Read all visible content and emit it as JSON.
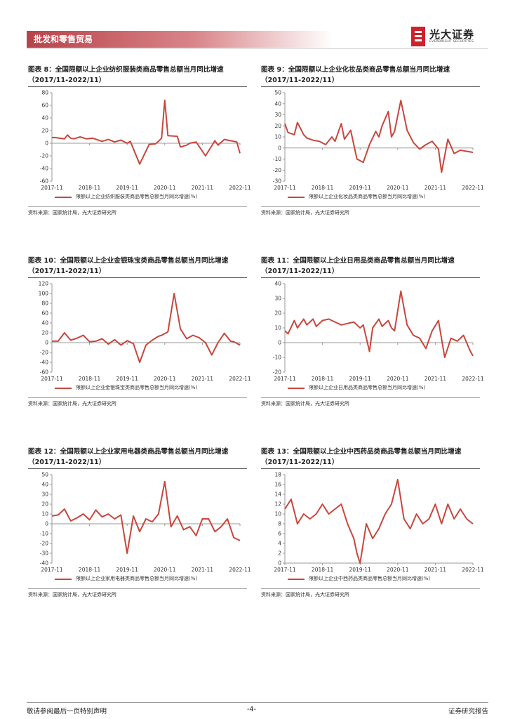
{
  "header": {
    "section": "批发和零售贸易",
    "brand_name": "光大证券",
    "brand_sub": "EVERBRIGHT SECURITIES"
  },
  "colors": {
    "series": "#c8463c",
    "header": "#b8434a",
    "axis": "#999999"
  },
  "charts": [
    {
      "title": "图表 8：全国限额以上企业纺织服装类商品零售总额当月同比增速（2017/11-2022/11）",
      "legend": "限额以上企业纺织服装类商品零售总额当月同比增速(%)",
      "source": "资料来源：国家统计局，光大证券研究所"
    },
    {
      "title": "图表 9：全国限额以上企业化妆品类商品零售总额当月同比增速（2017/11-2022/11）",
      "legend": "限额以上企业化妆品类商品零售总额当月同比增速(%)",
      "source": "资料来源：国家统计局，光大证券研究所"
    },
    {
      "title": "图表 10：全国限额以上企业金银珠宝类商品零售总额当月同比增速（2017/11-2022/11）",
      "legend": "限额以上企业金银珠宝类商品零售总额当月同比增速(%)",
      "source": "资料来源：国家统计局，光大证券研究所"
    },
    {
      "title": "图表 11：全国限额以上企业日用品类商品零售总额当月同比增速（2017/11-2022/11）",
      "legend": "限额以上企业日用品类商品零售总额当月同比增速(%)",
      "source": "资料来源：国家统计局，光大证券研究所"
    },
    {
      "title": "图表 12：全国限额以上企业家用电器类商品零售总额当月同比增速（2017/11-2022/11）",
      "legend": "限额以上企业家用电器类商品零售总额当月同比增速(%)",
      "source": "资料来源：国家统计局，光大证券研究所"
    },
    {
      "title": "图表 13：全国限额以上企业中西药品类商品零售总额当月同比增速（2017/11-2022/11）",
      "legend": "限额以上企业中西药品类商品零售总额当月同比增速(%)",
      "source": "资料来源：国家统计局，光大证券研究所"
    }
  ],
  "chart_data": [
    {
      "type": "line",
      "x_ticks": [
        "2017-11",
        "2018-11",
        "2019-11",
        "2020-11",
        "2021-11",
        "2022-11"
      ],
      "ylim": [
        -60,
        80
      ],
      "y_ticks": [
        -60,
        -40,
        -20,
        0,
        20,
        40,
        60,
        80
      ],
      "series": [
        {
          "name": "限额以上企业纺织服装类商品零售总额当月同比增速(%)",
          "x": [
            "2017-11",
            "2017-12",
            "2018-03",
            "2018-04",
            "2018-05",
            "2018-06",
            "2018-08",
            "2018-10",
            "2018-12",
            "2019-03",
            "2019-05",
            "2019-07",
            "2019-09",
            "2019-11",
            "2019-12",
            "2020-03",
            "2020-06",
            "2020-08",
            "2020-09",
            "2020-10",
            "2020-11",
            "2020-12",
            "2021-03",
            "2021-04",
            "2021-06",
            "2021-07",
            "2021-09",
            "2021-12",
            "2022-03",
            "2022-04",
            "2022-06",
            "2022-08",
            "2022-10",
            "2022-11"
          ],
          "values": [
            9,
            9,
            7,
            13,
            8,
            7,
            10,
            7,
            8,
            3,
            6,
            2,
            5,
            0,
            3,
            -33,
            -2,
            -1,
            3,
            8,
            68,
            12,
            11,
            -6,
            -3,
            0,
            2,
            -20,
            4,
            -3,
            6,
            4,
            2,
            -16
          ]
        }
      ]
    },
    {
      "type": "line",
      "x_ticks": [
        "2017-11",
        "2018-11",
        "2019-11",
        "2020-11",
        "2021-11",
        "2022-11"
      ],
      "ylim": [
        -30,
        50
      ],
      "y_ticks": [
        -30,
        -20,
        -10,
        0,
        10,
        20,
        30,
        40,
        50
      ],
      "series": [
        {
          "name": "限额以上企业化妆品类商品零售总额当月同比增速(%)",
          "x": [
            "2017-11",
            "2017-12",
            "2018-02",
            "2018-03",
            "2018-05",
            "2018-06",
            "2018-08",
            "2018-10",
            "2018-12",
            "2019-02",
            "2019-03",
            "2019-05",
            "2019-06",
            "2019-08",
            "2019-10",
            "2019-12",
            "2020-02",
            "2020-04",
            "2020-05",
            "2020-06",
            "2020-08",
            "2020-09",
            "2020-10",
            "2020-12",
            "2021-02",
            "2021-04",
            "2021-06",
            "2021-08",
            "2021-10",
            "2021-12",
            "2022-01",
            "2022-03",
            "2022-05",
            "2022-07",
            "2022-09",
            "2022-11"
          ],
          "values": [
            22,
            14,
            12,
            23,
            12,
            9,
            7,
            6,
            3,
            10,
            6,
            22,
            8,
            16,
            -10,
            -13,
            3,
            15,
            10,
            20,
            33,
            10,
            15,
            43,
            16,
            5,
            -1,
            3,
            6,
            -1,
            -22,
            8,
            -5,
            -2,
            -3,
            -4
          ]
        }
      ]
    },
    {
      "type": "line",
      "x_ticks": [
        "2017-11",
        "2018-11",
        "2019-11",
        "2020-11",
        "2021-11",
        "2022-11"
      ],
      "ylim": [
        -60,
        120
      ],
      "y_ticks": [
        -60,
        -40,
        -20,
        0,
        20,
        40,
        60,
        80,
        100,
        120
      ],
      "series": [
        {
          "name": "限额以上企业金银珠宝类商品零售总额当月同比增速(%)",
          "x": [
            "2017-11",
            "2018-01",
            "2018-03",
            "2018-05",
            "2018-07",
            "2018-09",
            "2018-11",
            "2019-01",
            "2019-03",
            "2019-05",
            "2019-07",
            "2019-09",
            "2019-11",
            "2020-01",
            "2020-03",
            "2020-05",
            "2020-07",
            "2020-09",
            "2020-10",
            "2020-12",
            "2021-02",
            "2021-04",
            "2021-06",
            "2021-08",
            "2021-10",
            "2021-12",
            "2022-02",
            "2022-04",
            "2022-06",
            "2022-08",
            "2022-09",
            "2022-11"
          ],
          "values": [
            3,
            3,
            20,
            5,
            9,
            15,
            2,
            3,
            8,
            -3,
            6,
            -5,
            4,
            -2,
            -40,
            -5,
            5,
            13,
            15,
            22,
            100,
            28,
            8,
            15,
            10,
            0,
            -25,
            0,
            19,
            3,
            2,
            -5
          ]
        }
      ]
    },
    {
      "type": "line",
      "x_ticks": [
        "2017-11",
        "2018-11",
        "2019-11",
        "2020-11",
        "2021-11",
        "2022-11"
      ],
      "ylim": [
        -20,
        40
      ],
      "y_ticks": [
        -20,
        -10,
        0,
        10,
        20,
        30,
        40
      ],
      "series": [
        {
          "name": "限额以上企业日用品类商品零售总额当月同比增速(%)",
          "x": [
            "2017-11",
            "2017-12",
            "2018-02",
            "2018-03",
            "2018-05",
            "2018-06",
            "2018-08",
            "2018-09",
            "2018-11",
            "2019-01",
            "2019-03",
            "2019-05",
            "2019-07",
            "2019-09",
            "2019-11",
            "2019-12",
            "2020-02",
            "2020-03",
            "2020-05",
            "2020-06",
            "2020-08",
            "2020-09",
            "2020-10",
            "2020-12",
            "2021-02",
            "2021-04",
            "2021-06",
            "2021-08",
            "2021-10",
            "2021-12",
            "2022-02",
            "2022-04",
            "2022-06",
            "2022-08",
            "2022-10",
            "2022-11"
          ],
          "values": [
            8,
            6,
            15,
            10,
            16,
            12,
            16,
            11,
            15,
            16,
            14,
            12,
            13,
            14,
            10,
            12,
            -6,
            10,
            16,
            11,
            15,
            10,
            8,
            35,
            12,
            5,
            3,
            -4,
            8,
            15,
            -10,
            3,
            1,
            5,
            -5,
            -9
          ]
        }
      ]
    },
    {
      "type": "line",
      "x_ticks": [
        "2017-11",
        "2018-11",
        "2019-11",
        "2020-11",
        "2021-11",
        "2022-11"
      ],
      "ylim": [
        -40,
        50
      ],
      "y_ticks": [
        -40,
        -30,
        -20,
        -10,
        0,
        10,
        20,
        30,
        40,
        50
      ],
      "series": [
        {
          "name": "限额以上企业家用电器类商品零售总额当月同比增速(%)",
          "x": [
            "2017-11",
            "2018-01",
            "2018-03",
            "2018-05",
            "2018-07",
            "2018-09",
            "2018-11",
            "2019-01",
            "2019-03",
            "2019-05",
            "2019-07",
            "2019-09",
            "2019-11",
            "2020-01",
            "2020-03",
            "2020-05",
            "2020-07",
            "2020-09",
            "2020-11",
            "2021-01",
            "2021-03",
            "2021-05",
            "2021-07",
            "2021-09",
            "2021-11",
            "2022-01",
            "2022-03",
            "2022-05",
            "2022-07",
            "2022-09",
            "2022-11"
          ],
          "values": [
            8,
            9,
            15,
            3,
            6,
            10,
            4,
            14,
            7,
            10,
            5,
            9,
            -30,
            8,
            -8,
            5,
            2,
            10,
            43,
            -3,
            8,
            -6,
            -3,
            -12,
            5,
            5,
            -8,
            -3,
            5,
            -14,
            -17
          ]
        }
      ]
    },
    {
      "type": "line",
      "x_ticks": [
        "2017-11",
        "2018-11",
        "2019-11",
        "2020-11",
        "2021-11",
        "2022-11"
      ],
      "ylim": [
        0,
        18
      ],
      "y_ticks": [
        0,
        2,
        4,
        6,
        8,
        10,
        12,
        14,
        16,
        18
      ],
      "series": [
        {
          "name": "限额以上企业中西药品类商品零售总额当月同比增速(%)",
          "x": [
            "2017-11",
            "2018-01",
            "2018-03",
            "2018-05",
            "2018-07",
            "2018-09",
            "2018-11",
            "2019-01",
            "2019-03",
            "2019-05",
            "2019-07",
            "2019-09",
            "2019-10",
            "2019-11",
            "2020-01",
            "2020-03",
            "2020-05",
            "2020-07",
            "2020-09",
            "2020-11",
            "2021-01",
            "2021-03",
            "2021-05",
            "2021-07",
            "2021-09",
            "2021-11",
            "2022-01",
            "2022-03",
            "2022-05",
            "2022-07",
            "2022-09",
            "2022-11"
          ],
          "values": [
            11,
            13,
            8,
            10,
            9,
            10,
            12,
            10,
            11,
            12,
            8,
            5,
            2,
            0,
            8,
            5,
            7,
            10,
            12,
            17,
            9,
            7,
            10,
            8,
            9,
            12,
            8,
            12,
            9,
            11,
            9,
            8
          ]
        }
      ]
    }
  ],
  "footer": {
    "left": "敬请参阅最后一页特别声明",
    "center": "-4-",
    "right": "证券研究报告"
  }
}
